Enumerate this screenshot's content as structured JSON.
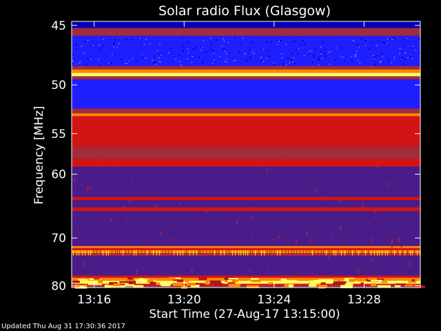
{
  "chart_data": {
    "type": "heatmap",
    "title": "Solar radio Flux (Glasgow)",
    "ylabel": "Frequency [MHz]",
    "xlabel": "Start Time (27-Aug-17 13:15:00)",
    "footer": "Updated Thu Aug 31 17:30:36 2017",
    "y_ticks": [
      {
        "label": "45",
        "value": 45
      },
      {
        "label": "50",
        "value": 50
      },
      {
        "label": "55",
        "value": 55
      },
      {
        "label": "60",
        "value": 60
      },
      {
        "label": "70",
        "value": 70
      },
      {
        "label": "80",
        "value": 80
      }
    ],
    "x_ticks": [
      {
        "label": "13:16",
        "value": 1.0
      },
      {
        "label": "13:20",
        "value": 5.0
      },
      {
        "label": "13:24",
        "value": 9.0
      },
      {
        "label": "13:28",
        "value": 13.0
      }
    ],
    "x_range_minutes": [
      0.0,
      15.5
    ],
    "y_scale": "reciprocal",
    "y_range_mhz": [
      44.7,
      80.4
    ],
    "background_color": "#4a1c8a",
    "colors": {
      "intense": "#ffff66",
      "high": "#ff8800",
      "strong": "#d21414",
      "moderate": "#a02c3c",
      "background": "#4a1c8a",
      "low": "#1e1eff",
      "very_low": "#0000b4"
    },
    "bands": [
      {
        "from": 44.7,
        "to": 45.2,
        "level": "very_low"
      },
      {
        "from": 45.2,
        "to": 45.8,
        "level": "moderate"
      },
      {
        "from": 45.8,
        "to": 48.3,
        "level": "low"
      },
      {
        "from": 48.3,
        "to": 48.6,
        "level": "moderate"
      },
      {
        "from": 48.6,
        "to": 48.9,
        "level": "high"
      },
      {
        "from": 48.9,
        "to": 49.2,
        "level": "intense"
      },
      {
        "from": 49.2,
        "to": 49.5,
        "level": "moderate"
      },
      {
        "from": 49.5,
        "to": 52.3,
        "level": "low"
      },
      {
        "from": 52.3,
        "to": 52.8,
        "level": "moderate"
      },
      {
        "from": 52.8,
        "to": 53.1,
        "level": "high"
      },
      {
        "from": 53.1,
        "to": 54.0,
        "level": "strong"
      },
      {
        "from": 54.0,
        "to": 56.5,
        "level": "strong"
      },
      {
        "from": 56.5,
        "to": 58.0,
        "level": "moderate"
      },
      {
        "from": 58.0,
        "to": 59.0,
        "level": "strong"
      },
      {
        "from": 59.0,
        "to": 63.2,
        "level": "background"
      },
      {
        "from": 63.2,
        "to": 63.7,
        "level": "strong"
      },
      {
        "from": 63.7,
        "to": 64.8,
        "level": "background"
      },
      {
        "from": 64.8,
        "to": 65.4,
        "level": "strong"
      },
      {
        "from": 65.4,
        "to": 71.5,
        "level": "background"
      },
      {
        "from": 71.5,
        "to": 71.9,
        "level": "high"
      },
      {
        "from": 71.9,
        "to": 72.3,
        "level": "strong"
      },
      {
        "from": 72.3,
        "to": 72.9,
        "level": "high"
      },
      {
        "from": 72.9,
        "to": 73.4,
        "level": "moderate"
      },
      {
        "from": 73.4,
        "to": 77.6,
        "level": "background"
      },
      {
        "from": 77.6,
        "to": 78.1,
        "level": "strong"
      },
      {
        "from": 78.1,
        "to": 78.8,
        "level": "high"
      },
      {
        "from": 78.8,
        "to": 79.5,
        "level": "intense"
      },
      {
        "from": 79.5,
        "to": 79.9,
        "level": "strong"
      },
      {
        "from": 79.9,
        "to": 80.4,
        "level": "moderate"
      }
    ]
  }
}
